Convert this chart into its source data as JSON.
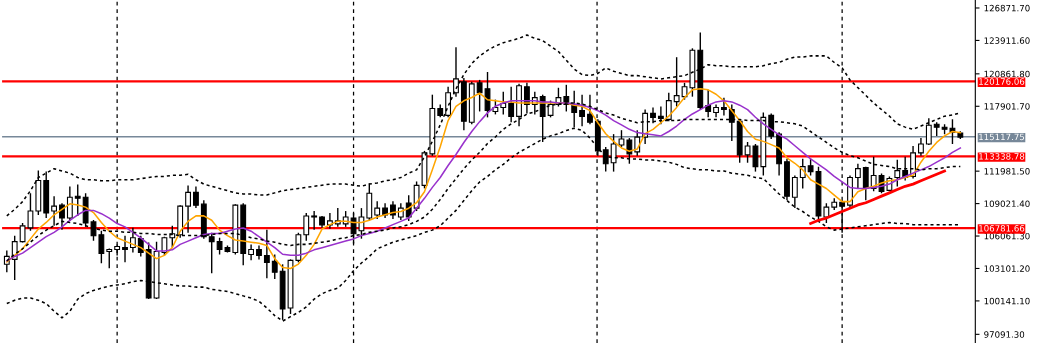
{
  "chart_data": {
    "type": "candlestick",
    "categories": [
      null,
      null,
      null,
      null,
      null,
      null,
      null,
      null,
      null,
      null,
      null,
      null,
      null,
      null,
      null,
      null,
      null,
      null,
      null,
      null,
      null,
      null,
      null,
      null,
      null,
      null,
      null,
      null,
      null,
      null,
      null,
      null,
      null,
      null,
      null,
      null,
      null,
      null,
      null,
      null,
      null,
      null,
      null,
      null,
      null,
      null,
      null,
      null,
      null,
      null,
      null,
      null,
      null,
      null,
      null,
      null,
      null,
      null,
      null,
      null,
      null,
      null,
      null,
      null,
      null,
      null,
      null,
      null,
      null,
      null,
      null,
      null,
      null,
      null,
      null,
      null,
      null,
      null,
      null,
      null,
      null,
      null,
      null,
      null,
      null,
      null,
      null,
      null,
      null,
      null,
      null,
      null,
      null,
      null,
      null,
      null,
      null,
      null,
      null,
      null,
      null,
      null,
      null,
      null,
      null,
      null,
      null,
      null,
      null,
      null,
      null,
      null,
      null,
      null,
      null,
      null,
      null,
      null,
      null,
      null,
      null,
      null
    ],
    "ohlc": [
      [
        103480,
        104740,
        102760,
        104200
      ],
      [
        103930,
        106090,
        102040,
        105550
      ],
      [
        105550,
        107260,
        105460,
        106990
      ],
      [
        106810,
        109960,
        106540,
        108340
      ],
      [
        108340,
        112030,
        107980,
        111130
      ],
      [
        111130,
        111940,
        107710,
        108160
      ],
      [
        108340,
        109690,
        106990,
        108790
      ],
      [
        108880,
        109060,
        106630,
        107710
      ],
      [
        107710,
        110590,
        107440,
        109600
      ],
      [
        109690,
        110770,
        107890,
        109510
      ],
      [
        109600,
        109960,
        106900,
        107260
      ],
      [
        107350,
        107530,
        105640,
        106090
      ],
      [
        106180,
        106540,
        103570,
        104470
      ],
      [
        104650,
        104920,
        103120,
        104830
      ],
      [
        104830,
        105280,
        104290,
        105100
      ],
      [
        105010,
        106090,
        103660,
        104830
      ],
      [
        105010,
        106810,
        104560,
        105910
      ],
      [
        105820,
        106090,
        104200,
        104560
      ],
      [
        104830,
        105460,
        100320,
        100410
      ],
      [
        100410,
        105550,
        100320,
        104650
      ],
      [
        104560,
        106000,
        104290,
        105910
      ],
      [
        105910,
        106990,
        105010,
        106270
      ],
      [
        106180,
        108880,
        105910,
        108790
      ],
      [
        108790,
        110680,
        106360,
        110050
      ],
      [
        110050,
        110590,
        108610,
        108880
      ],
      [
        108970,
        109330,
        105820,
        106000
      ],
      [
        106000,
        106360,
        102670,
        105550
      ],
      [
        105550,
        105910,
        104380,
        104830
      ],
      [
        105010,
        105190,
        104560,
        104650
      ],
      [
        104560,
        108970,
        104380,
        108880
      ],
      [
        108880,
        109060,
        103390,
        104470
      ],
      [
        104380,
        105280,
        103840,
        104830
      ],
      [
        104830,
        105190,
        103930,
        104290
      ],
      [
        104290,
        106630,
        102220,
        103660
      ],
      [
        103750,
        104380,
        102130,
        102760
      ],
      [
        102850,
        103480,
        98410,
        99400
      ],
      [
        99490,
        103930,
        98950,
        103840
      ],
      [
        103840,
        106360,
        103660,
        106180
      ],
      [
        106180,
        108160,
        105640,
        107890
      ],
      [
        107890,
        108340,
        106630,
        107800
      ],
      [
        107800,
        107890,
        106810,
        107080
      ],
      [
        107080,
        108160,
        106720,
        107440
      ],
      [
        107170,
        108610,
        106900,
        107440
      ],
      [
        107170,
        108340,
        106900,
        107800
      ],
      [
        107710,
        108160,
        105370,
        106270
      ],
      [
        106540,
        108610,
        105820,
        107800
      ],
      [
        107710,
        110860,
        107440,
        109960
      ],
      [
        107980,
        109240,
        107620,
        108610
      ],
      [
        108610,
        109060,
        107710,
        107980
      ],
      [
        108880,
        109240,
        107620,
        107980
      ],
      [
        107800,
        109060,
        107530,
        108610
      ],
      [
        109060,
        109780,
        107440,
        107800
      ],
      [
        108610,
        111040,
        108340,
        110680
      ],
      [
        110680,
        113830,
        110410,
        113650
      ],
      [
        113560,
        118960,
        113380,
        117700
      ],
      [
        117700,
        118060,
        116890,
        117070
      ],
      [
        117070,
        119680,
        116890,
        119140
      ],
      [
        119140,
        123280,
        118780,
        120400
      ],
      [
        120130,
        120490,
        115720,
        116530
      ],
      [
        116440,
        120130,
        116260,
        119950
      ],
      [
        120040,
        120310,
        117430,
        119140
      ],
      [
        119500,
        121030,
        116890,
        117520
      ],
      [
        117430,
        118510,
        117160,
        117790
      ],
      [
        117790,
        119230,
        117160,
        118150
      ],
      [
        118150,
        119680,
        116440,
        116980
      ],
      [
        116980,
        119950,
        116080,
        119770
      ],
      [
        119680,
        120040,
        117250,
        118060
      ],
      [
        118060,
        119230,
        117160,
        118690
      ],
      [
        118780,
        118960,
        114640,
        116980
      ],
      [
        117070,
        118420,
        116890,
        118060
      ],
      [
        118060,
        119590,
        117880,
        118690
      ],
      [
        118780,
        119860,
        117430,
        118060
      ],
      [
        118060,
        119320,
        115990,
        117340
      ],
      [
        117520,
        118960,
        116080,
        116980
      ],
      [
        117160,
        118960,
        116260,
        116440
      ],
      [
        116530,
        116710,
        113380,
        113830
      ],
      [
        113920,
        114190,
        111940,
        112660
      ],
      [
        112750,
        115360,
        111940,
        114460
      ],
      [
        114370,
        115720,
        114190,
        114910
      ],
      [
        114820,
        115000,
        112660,
        113560
      ],
      [
        113740,
        115720,
        113380,
        115090
      ],
      [
        115090,
        117610,
        114460,
        117250
      ],
      [
        117250,
        117790,
        116350,
        116890
      ],
      [
        116980,
        117880,
        116260,
        116800
      ],
      [
        116710,
        119140,
        116530,
        118420
      ],
      [
        118330,
        122380,
        117880,
        118870
      ],
      [
        118780,
        120040,
        118510,
        119680
      ],
      [
        119590,
        123190,
        118780,
        123010
      ],
      [
        123010,
        124630,
        117610,
        117790
      ],
      [
        117970,
        119410,
        116890,
        117430
      ],
      [
        117340,
        118060,
        116890,
        117790
      ],
      [
        117790,
        118690,
        117070,
        117610
      ],
      [
        117610,
        118060,
        114730,
        116440
      ],
      [
        116530,
        116710,
        112750,
        113470
      ],
      [
        113470,
        114640,
        112750,
        114280
      ],
      [
        114280,
        114460,
        111940,
        112390
      ],
      [
        112390,
        117340,
        111580,
        116890
      ],
      [
        117070,
        117250,
        114910,
        115180
      ],
      [
        115360,
        115540,
        111580,
        112660
      ],
      [
        112840,
        113110,
        109330,
        109690
      ],
      [
        109600,
        111580,
        108610,
        111400
      ],
      [
        111400,
        113110,
        110410,
        112390
      ],
      [
        112480,
        113110,
        111580,
        111940
      ],
      [
        111940,
        112390,
        107530,
        107890
      ],
      [
        107800,
        109060,
        107260,
        108700
      ],
      [
        108700,
        109510,
        108430,
        109150
      ],
      [
        109150,
        109330,
        106360,
        108790
      ],
      [
        108880,
        111580,
        108610,
        111400
      ],
      [
        111400,
        112660,
        110410,
        112210
      ],
      [
        112300,
        112390,
        109330,
        110410
      ],
      [
        110410,
        113290,
        110140,
        111580
      ],
      [
        111580,
        111760,
        109960,
        110140
      ],
      [
        110230,
        111490,
        110140,
        111310
      ],
      [
        111400,
        113020,
        110590,
        112030
      ],
      [
        112030,
        113290,
        111130,
        111400
      ],
      [
        111490,
        114280,
        111310,
        113650
      ],
      [
        113650,
        115000,
        113380,
        114460
      ],
      [
        114460,
        116800,
        114370,
        116170
      ],
      [
        116260,
        116440,
        115180,
        115990
      ],
      [
        115990,
        116260,
        115360,
        115810
      ],
      [
        115900,
        116710,
        114460,
        115540
      ],
      [
        115450,
        115630,
        114910,
        115090
      ]
    ],
    "series": [
      {
        "type": "line",
        "color": "#ffa500",
        "line_style": "solid",
        "values": [
          103700,
          104300,
          104900,
          105800,
          106700,
          107300,
          108000,
          108500,
          109000,
          108900,
          108700,
          108200,
          107300,
          106500,
          105900,
          105600,
          105300,
          105000,
          104500,
          104000,
          104300,
          105000,
          106500,
          107400,
          107900,
          107900,
          107500,
          106600,
          106100,
          105700,
          105600,
          105500,
          105400,
          105200,
          104000,
          103200,
          103100,
          103500,
          104300,
          105300,
          106700,
          107100,
          107400,
          107400,
          107300,
          107300,
          107500,
          107800,
          108000,
          108200,
          108300,
          108600,
          109100,
          110100,
          112100,
          114200,
          116600,
          117900,
          118400,
          118700,
          119100,
          118500,
          118400,
          118300,
          118300,
          118200,
          118200,
          118200,
          118200,
          118200,
          118200,
          118200,
          118000,
          117900,
          117500,
          116400,
          115400,
          114700,
          114100,
          113800,
          114000,
          115400,
          115800,
          116400,
          117000,
          117800,
          118700,
          119400,
          119500,
          119400,
          119000,
          118400,
          117500,
          116600,
          115600,
          114900,
          114700,
          114400,
          114100,
          113200,
          112700,
          112100,
          111200,
          110800,
          110400,
          109800,
          109200,
          109200,
          110100,
          110400,
          110600,
          110900,
          111100,
          111200,
          111400,
          111600,
          112800,
          113800,
          114600,
          115200,
          115600,
          115500
        ]
      },
      {
        "type": "line",
        "color": "#9932cc",
        "line_style": "solid",
        "values": [
          103800,
          104200,
          104500,
          105000,
          105500,
          106000,
          106400,
          106900,
          107500,
          108000,
          108400,
          108400,
          108100,
          107700,
          107200,
          106900,
          106400,
          105900,
          105300,
          104700,
          104700,
          104800,
          105300,
          105600,
          105900,
          106200,
          106300,
          106300,
          106500,
          106700,
          106800,
          106500,
          106000,
          105500,
          105000,
          104400,
          104300,
          104300,
          104500,
          104800,
          105000,
          105200,
          105400,
          105600,
          105800,
          106100,
          106300,
          106500,
          106800,
          107100,
          107400,
          107700,
          108600,
          109500,
          110500,
          111400,
          112500,
          113500,
          114600,
          115600,
          116500,
          117300,
          117900,
          118200,
          118400,
          118400,
          118400,
          118400,
          118300,
          118300,
          118200,
          118200,
          118100,
          118000,
          117800,
          117500,
          117100,
          116600,
          116200,
          115800,
          115500,
          115400,
          115300,
          115200,
          115600,
          116100,
          116700,
          117200,
          117600,
          118000,
          118300,
          118400,
          118300,
          118000,
          117600,
          116900,
          116300,
          115800,
          115300,
          114900,
          114300,
          113700,
          113100,
          112600,
          112100,
          111500,
          111000,
          110500,
          110400,
          110400,
          110500,
          110600,
          110800,
          111200,
          111500,
          111800,
          112100,
          112400,
          112800,
          113200,
          113700,
          114100
        ]
      },
      {
        "type": "line",
        "color": "#000000",
        "line_style": "dashed",
        "values": [
          107900,
          108500,
          109200,
          110200,
          111400,
          111800,
          112200,
          112000,
          111800,
          111400,
          111200,
          111200,
          111100,
          111100,
          111200,
          111200,
          111200,
          111300,
          111400,
          111500,
          111500,
          111600,
          111600,
          111700,
          111200,
          110800,
          110600,
          110400,
          110200,
          110000,
          109900,
          109900,
          109800,
          109800,
          110000,
          110200,
          110300,
          110400,
          110500,
          110600,
          110700,
          110800,
          110800,
          110800,
          110700,
          110600,
          110800,
          110900,
          111100,
          111200,
          111400,
          111800,
          112100,
          113300,
          114700,
          116200,
          117900,
          119500,
          120800,
          121800,
          122500,
          123000,
          123400,
          123700,
          123900,
          124100,
          124400,
          124100,
          123900,
          123400,
          122900,
          122100,
          121300,
          120800,
          120700,
          120900,
          121400,
          121100,
          120900,
          120700,
          120700,
          120600,
          120500,
          120400,
          120500,
          120600,
          120700,
          121000,
          121300,
          121700,
          121600,
          121600,
          121500,
          121500,
          121500,
          121500,
          121600,
          121800,
          121900,
          122200,
          122400,
          122400,
          122500,
          122500,
          122500,
          121900,
          121400,
          120300,
          119600,
          118900,
          118200,
          117600,
          117000,
          116300,
          116000,
          115800,
          116100,
          116400,
          116700,
          117000,
          117100,
          117300
        ]
      },
      {
        "type": "line",
        "color": "#000000",
        "line_style": "dashed",
        "values": [
          103800,
          104400,
          104900,
          105500,
          106100,
          106600,
          107000,
          107400,
          107300,
          107200,
          107000,
          106800,
          106600,
          106500,
          106500,
          106400,
          106400,
          106300,
          106300,
          106200,
          106200,
          106200,
          106100,
          106100,
          106100,
          106100,
          106200,
          106300,
          106300,
          106300,
          106100,
          105900,
          105800,
          105600,
          105500,
          105300,
          105200,
          105300,
          105300,
          105400,
          105500,
          105600,
          105800,
          105900,
          106100,
          106200,
          106400,
          106500,
          106600,
          106800,
          106900,
          107100,
          107400,
          107800,
          108500,
          109400,
          110400,
          111300,
          112200,
          113000,
          113700,
          114500,
          115100,
          115800,
          116300,
          116700,
          117200,
          117400,
          117700,
          118000,
          118100,
          118200,
          118200,
          118100,
          117900,
          117600,
          117300,
          117100,
          116800,
          116600,
          116400,
          116500,
          116500,
          116600,
          116600,
          116600,
          116700,
          116700,
          116700,
          116700,
          116700,
          116700,
          116700,
          116700,
          116600,
          116600,
          116600,
          116500,
          116500,
          116400,
          116300,
          116100,
          115600,
          115100,
          114600,
          114100,
          113700,
          113400,
          113200,
          112900,
          112600,
          112500,
          112400,
          112200,
          112200,
          112200,
          112100,
          112200,
          112200,
          112300,
          112400,
          112400
        ]
      },
      {
        "type": "line",
        "color": "#000000",
        "line_style": "dashed",
        "values": [
          99900,
          100200,
          100400,
          100400,
          100200,
          99900,
          99200,
          98600,
          99200,
          100300,
          100800,
          101100,
          101300,
          101500,
          101600,
          101700,
          101900,
          102000,
          101900,
          101800,
          101700,
          101600,
          101500,
          101500,
          101400,
          101400,
          101200,
          101100,
          101000,
          100800,
          100600,
          100400,
          100100,
          99500,
          98800,
          98300,
          98700,
          99100,
          99600,
          100300,
          100800,
          101100,
          101300,
          102000,
          102900,
          103600,
          104200,
          104900,
          105200,
          105500,
          105700,
          105900,
          106100,
          106400,
          106600,
          107000,
          107700,
          108400,
          109300,
          110200,
          111000,
          111500,
          112100,
          112600,
          113200,
          113700,
          114100,
          114500,
          114900,
          115200,
          115400,
          115700,
          115900,
          115700,
          115000,
          114100,
          113300,
          113200,
          113200,
          113100,
          113100,
          113000,
          113000,
          112900,
          112800,
          112600,
          112300,
          112200,
          112100,
          112100,
          112000,
          112000,
          111800,
          111700,
          111600,
          111400,
          111300,
          110600,
          109900,
          109300,
          108700,
          108300,
          107800,
          107400,
          106900,
          106600,
          106700,
          106800,
          106900,
          107000,
          107100,
          107200,
          107300,
          107200,
          107200,
          107100,
          107100,
          107100,
          107100,
          107100,
          107100,
          107100
        ]
      },
      {
        "type": "line",
        "color": "#ff0000",
        "line_style": "solid",
        "values": [
          null,
          null,
          null,
          null,
          null,
          null,
          null,
          null,
          null,
          null,
          null,
          null,
          null,
          null,
          null,
          null,
          null,
          null,
          null,
          null,
          null,
          null,
          null,
          null,
          null,
          null,
          null,
          null,
          null,
          null,
          null,
          null,
          null,
          null,
          null,
          null,
          null,
          null,
          null,
          null,
          null,
          null,
          null,
          null,
          null,
          null,
          null,
          null,
          null,
          null,
          null,
          null,
          null,
          null,
          null,
          null,
          null,
          null,
          null,
          null,
          null,
          null,
          null,
          null,
          null,
          null,
          null,
          null,
          null,
          null,
          null,
          null,
          null,
          null,
          null,
          null,
          null,
          null,
          null,
          null,
          null,
          null,
          null,
          null,
          null,
          null,
          null,
          null,
          null,
          null,
          null,
          null,
          null,
          null,
          null,
          null,
          null,
          null,
          null,
          null,
          null,
          null,
          107200,
          107500,
          107700,
          108000,
          108300,
          108600,
          108900,
          109100,
          109400,
          109700,
          110000,
          110300,
          110600,
          110800,
          111100,
          111400,
          111700,
          112000,
          null,
          null
        ]
      }
    ],
    "ref_lines": [
      {
        "axis": "y",
        "value": 120176.06,
        "label": "120176.06",
        "color": "#ff0000",
        "line_style": "solid"
      },
      {
        "axis": "y",
        "value": 115117.75,
        "label": "115117.75",
        "color": "#778899",
        "line_style": "solid"
      },
      {
        "axis": "y",
        "value": 113338.78,
        "label": "113338.78",
        "color": "#ff0000",
        "line_style": "solid"
      },
      {
        "axis": "y",
        "value": 106781.66,
        "label": "106781.66",
        "color": "#ff0000",
        "line_style": "solid"
      }
    ],
    "ylim": [
      96300,
      127600
    ],
    "yticks": [
      {
        "value": 126871.7,
        "label": "126871.70"
      },
      {
        "value": 123911.6,
        "label": "123911.60"
      },
      {
        "value": 120861.8,
        "label": "120861.80"
      },
      {
        "value": 117901.7,
        "label": "117901.70"
      },
      {
        "value": 111981.5,
        "label": "111981.50"
      },
      {
        "value": 109021.4,
        "label": "109021.40"
      },
      {
        "value": 106061.3,
        "label": "106061.30"
      },
      {
        "value": 103101.2,
        "label": "103101.20"
      },
      {
        "value": 100141.1,
        "label": "100141.10"
      },
      {
        "value": 97091.3,
        "label": "97091.30"
      }
    ],
    "tick_labels": "y",
    "grid": "x"
  }
}
